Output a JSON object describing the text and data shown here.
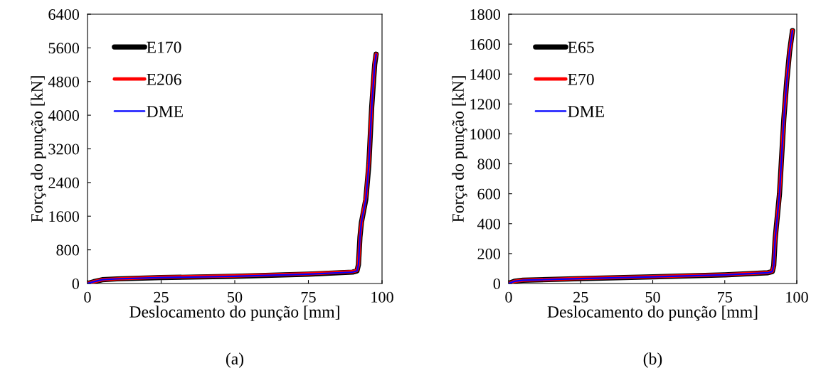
{
  "chart_data": [
    {
      "type": "line",
      "xlabel": "Deslocamento do punção [mm]",
      "ylabel": "Força do punção [kN]",
      "annotations": [
        "(a)"
      ],
      "xlim": [
        0,
        100
      ],
      "xticks": [
        0,
        25,
        50,
        75,
        100
      ],
      "ylim": [
        0,
        6400
      ],
      "yticks": [
        0,
        800,
        1600,
        2400,
        3200,
        4000,
        4800,
        5600,
        6400
      ],
      "grid": false,
      "legend": "top left",
      "x": [
        0,
        2,
        5,
        10,
        25,
        50,
        75,
        90,
        91.5,
        92,
        92.5,
        93,
        94.5,
        95.5,
        96.5,
        97.5,
        98
      ],
      "series": [
        {
          "name": "E170",
          "color": "#000000",
          "values": [
            0,
            40,
            90,
            110,
            140,
            170,
            220,
            270,
            300,
            450,
            1100,
            1450,
            2000,
            2800,
            4200,
            5200,
            5450
          ]
        },
        {
          "name": "E206",
          "color": "#ff0000",
          "values": [
            0,
            40,
            90,
            110,
            150,
            180,
            230,
            280,
            310,
            450,
            1100,
            1450,
            2050,
            2850,
            4250,
            5250,
            5450
          ]
        },
        {
          "name": "DME",
          "color": "#0000ff",
          "values": [
            0,
            40,
            90,
            110,
            140,
            170,
            220,
            270,
            300,
            450,
            1100,
            1450,
            2000,
            2800,
            4200,
            5200,
            5450
          ]
        }
      ]
    },
    {
      "type": "line",
      "xlabel": "Deslocamento do punção [mm]",
      "ylabel": "Força do punção [kN]",
      "annotations": [
        "(b)"
      ],
      "xlim": [
        0,
        100
      ],
      "xticks": [
        0,
        25,
        50,
        75,
        100
      ],
      "ylim": [
        0,
        1800
      ],
      "yticks": [
        0,
        200,
        400,
        600,
        800,
        1000,
        1200,
        1400,
        1600,
        1800
      ],
      "grid": false,
      "legend": "top left",
      "x": [
        0,
        2,
        5,
        25,
        50,
        75,
        90,
        91.5,
        92,
        92.5,
        94,
        95.5,
        96.5,
        97.5,
        98.5
      ],
      "series": [
        {
          "name": "E65",
          "color": "#000000",
          "values": [
            0,
            15,
            22,
            33,
            45,
            58,
            72,
            80,
            120,
            300,
            600,
            1100,
            1350,
            1550,
            1690
          ]
        },
        {
          "name": "E70",
          "color": "#ff0000",
          "values": [
            0,
            15,
            22,
            34,
            46,
            59,
            73,
            81,
            120,
            300,
            600,
            1100,
            1350,
            1550,
            1690
          ]
        },
        {
          "name": "DME",
          "color": "#0000ff",
          "values": [
            0,
            15,
            22,
            33,
            45,
            58,
            72,
            80,
            120,
            300,
            600,
            1100,
            1350,
            1550,
            1690
          ]
        }
      ]
    }
  ]
}
